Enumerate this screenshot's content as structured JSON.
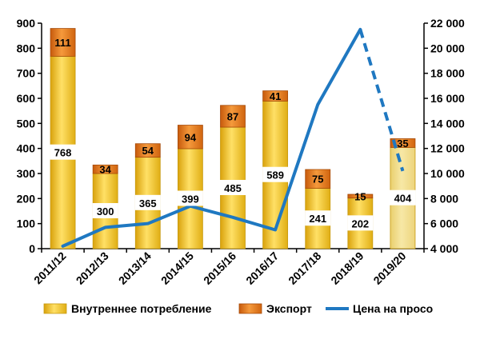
{
  "chart_data": {
    "type": "bar",
    "stacked": true,
    "categories": [
      "2011/12",
      "2012/13",
      "2013/14",
      "2014/15",
      "2015/16",
      "2016/17",
      "2017/18",
      "2018/19",
      "2019/20"
    ],
    "series": [
      {
        "name": "Внутреннее потребление",
        "type": "bar",
        "axis": "left",
        "color": "#F2C21B",
        "values": [
          768,
          300,
          365,
          399,
          485,
          589,
          241,
          202,
          404
        ],
        "labels": [
          "768",
          "300",
          "365",
          "399",
          "485",
          "589",
          "241",
          "202",
          "404"
        ]
      },
      {
        "name": "Экспорт",
        "type": "bar",
        "axis": "left",
        "color": "#E8731A",
        "values": [
          111,
          34,
          54,
          94,
          87,
          41,
          75,
          15,
          35
        ],
        "labels": [
          "111",
          "34",
          "54",
          "94",
          "87",
          "41",
          "75",
          "15",
          "35"
        ]
      },
      {
        "name": "Цена на просо",
        "type": "line",
        "axis": "right",
        "color": "#1F78C1",
        "values": [
          4200,
          5700,
          6000,
          7400,
          6500,
          5500,
          15500,
          21500,
          10200
        ],
        "dashed_last_segment": true
      }
    ],
    "y_left": {
      "ylim": [
        0,
        900
      ],
      "ticks": [
        "0",
        "100",
        "200",
        "300",
        "400",
        "500",
        "600",
        "700",
        "800",
        "900"
      ]
    },
    "y_right": {
      "ylim": [
        4000,
        22000
      ],
      "ticks": [
        "4 000",
        "6 000",
        "8 000",
        "10 000",
        "12 000",
        "14 000",
        "16 000",
        "18 000",
        "20 000",
        "22 000"
      ]
    },
    "grid": false,
    "legend": "bottom",
    "title": "",
    "xlabel": "",
    "ylabel": ""
  }
}
